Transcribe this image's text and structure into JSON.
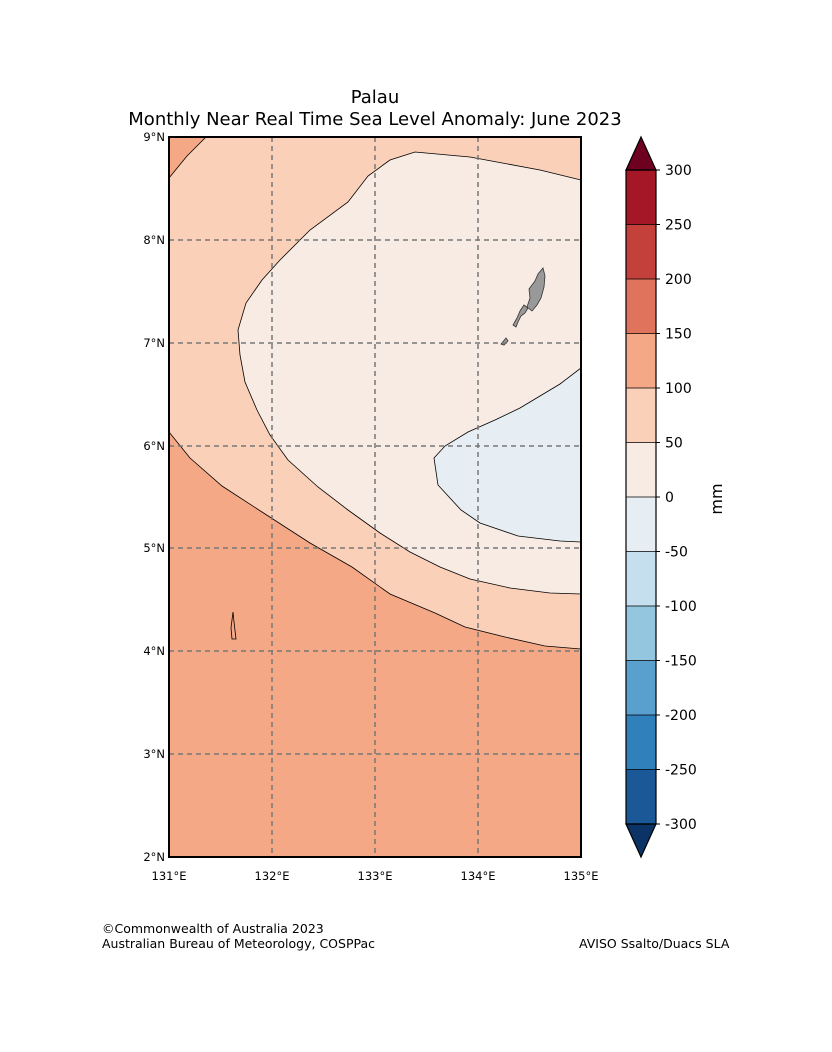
{
  "title": {
    "region": "Palau",
    "subtitle": "Monthly Near Real Time Sea Level Anomaly: June 2023"
  },
  "map": {
    "lon_ticks": [
      "131°E",
      "132°E",
      "133°E",
      "134°E",
      "135°E"
    ],
    "lat_ticks": [
      "9°N",
      "8°N",
      "7°N",
      "6°N",
      "5°N",
      "4°N",
      "3°N",
      "2°N"
    ],
    "lon_range": [
      131,
      135
    ],
    "lat_range": [
      2,
      9
    ]
  },
  "colorbar": {
    "label": "mm",
    "ticks": [
      "300",
      "250",
      "200",
      "150",
      "100",
      "50",
      "0",
      "-50",
      "-100",
      "-150",
      "-200",
      "-250",
      "-300"
    ],
    "colors": [
      "#a51626",
      "#c4403b",
      "#e0735b",
      "#f4a886",
      "#fbd0b9",
      "#f7ebe4",
      "#e7eef3",
      "#c5dfee",
      "#94c6e0",
      "#5aa0ce",
      "#3080bc",
      "#1a5898"
    ],
    "over_color": "#6e0120",
    "under_color": "#0c3365"
  },
  "colors": {
    "level_100_150": "#f4a886",
    "level_50_100": "#fbd0b9",
    "level_0_50": "#f7ebe4",
    "level_neg50_0": "#e7eef3",
    "land": "#999999"
  },
  "footer": {
    "copyright": "©Commonwealth of Australia 2023",
    "agency": "Australian Bureau of Meteorology, COSPPac",
    "source": "AVISO Ssalto/Duacs SLA"
  }
}
